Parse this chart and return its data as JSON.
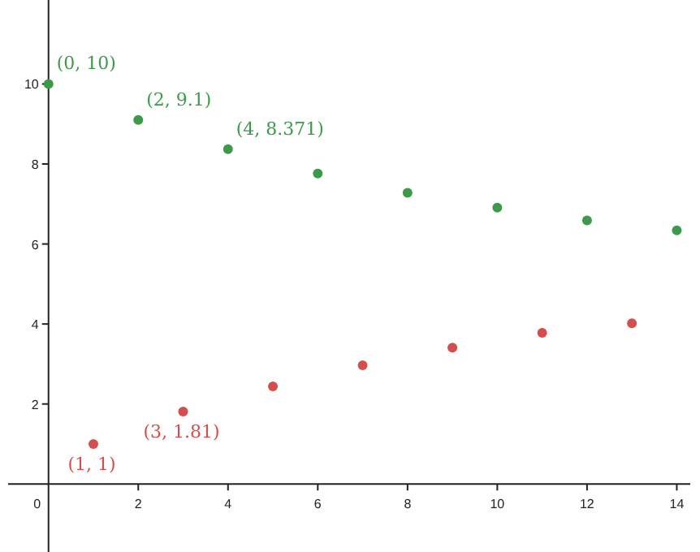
{
  "chart_data": {
    "type": "scatter",
    "xlim": [
      -0.9,
      14.3
    ],
    "ylim": [
      -1.7,
      12.1
    ],
    "xticks": [
      {
        "value": 0,
        "label": "0"
      },
      2,
      4,
      6,
      8,
      10,
      12,
      14
    ],
    "yticks": [
      2,
      4,
      6,
      8,
      10
    ],
    "grid": false,
    "marker": "circle",
    "series": [
      {
        "color": "#3d9a4a",
        "x": [
          0,
          2,
          4,
          6,
          8,
          10,
          12,
          14
        ],
        "values": [
          10,
          9.1,
          8.371,
          7.76,
          7.28,
          6.91,
          6.59,
          6.34
        ]
      },
      {
        "color": "#d64d4d",
        "x": [
          1,
          3,
          5,
          7,
          9,
          11,
          13
        ],
        "values": [
          1,
          1.81,
          2.44,
          2.97,
          3.41,
          3.78,
          4.02
        ]
      }
    ],
    "annotations": [
      {
        "text": "(0, 10)",
        "x": 0,
        "y": 10
      },
      {
        "text": "(2, 9.1)",
        "x": 2,
        "y": 9.1
      },
      {
        "text": "(4, 8.371)",
        "x": 4,
        "y": 8.371
      },
      {
        "text": "(1, 1)",
        "x": 1,
        "y": 1
      },
      {
        "text": "(3, 1.81)",
        "x": 3,
        "y": 1.81
      }
    ]
  }
}
